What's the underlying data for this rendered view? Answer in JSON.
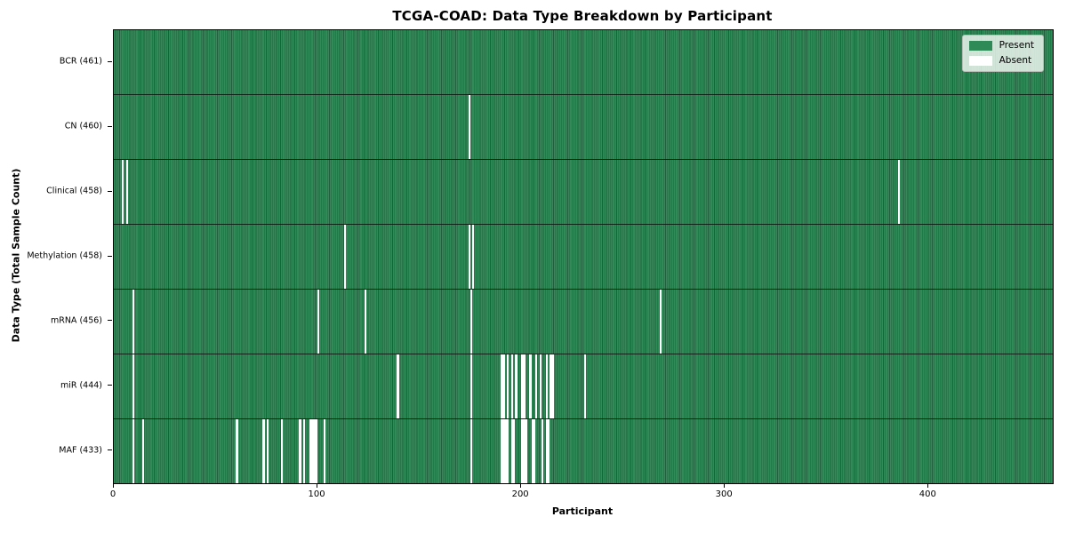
{
  "chart_data": {
    "type": "heatmap",
    "title": "TCGA-COAD: Data Type Breakdown by Participant",
    "xlabel": "Participant",
    "ylabel": "Data Type (Total Sample Count)",
    "x_ticks": [
      0,
      100,
      200,
      300,
      400
    ],
    "x_max": 461,
    "n_participants": 461,
    "legend": [
      {
        "name": "present",
        "label": "Present",
        "color": "#2e8b57"
      },
      {
        "name": "absent",
        "label": "Absent",
        "color": "#ffffff"
      }
    ],
    "colors": {
      "present": "#2f8c58",
      "present_stripe": "#225f3d",
      "absent": "#ffffff",
      "row_separator": "#0a140c",
      "axis": "#000000"
    },
    "rows": [
      {
        "name": "BCR",
        "label": "BCR (461)",
        "total": 461,
        "absent_participants": []
      },
      {
        "name": "CN",
        "label": "CN (460)",
        "total": 460,
        "absent_participants": [
          174
        ]
      },
      {
        "name": "Clinical",
        "label": "Clinical (458)",
        "total": 458,
        "absent_participants": [
          4,
          6,
          385
        ]
      },
      {
        "name": "Methylation",
        "label": "Methylation (458)",
        "total": 458,
        "absent_participants": [
          113,
          174,
          176
        ]
      },
      {
        "name": "mRNA",
        "label": "mRNA (456)",
        "total": 456,
        "absent_participants": [
          9,
          100,
          123,
          175,
          268
        ]
      },
      {
        "name": "miR",
        "label": "miR (444)",
        "total": 444,
        "absent_participants": [
          9,
          139,
          175,
          190,
          191,
          193,
          195,
          197,
          200,
          201,
          204,
          207,
          209,
          212,
          214,
          215,
          231
        ]
      },
      {
        "name": "MAF",
        "label": "MAF (433)",
        "total": 433,
        "absent_participants": [
          9,
          14,
          60,
          73,
          75,
          82,
          91,
          93,
          96,
          97,
          98,
          99,
          103,
          175,
          190,
          191,
          192,
          193,
          195,
          196,
          200,
          201,
          202,
          205,
          206,
          210,
          212,
          213
        ]
      }
    ]
  }
}
